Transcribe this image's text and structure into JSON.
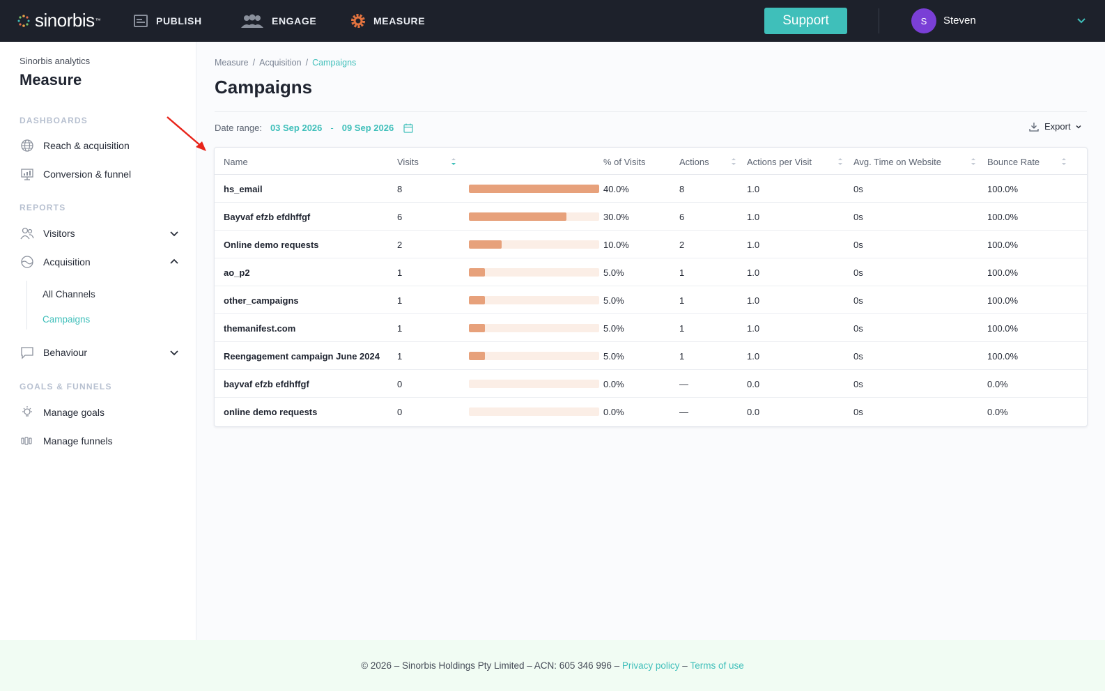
{
  "brand": {
    "name": "sinorbis",
    "tm": "™"
  },
  "topnav": {
    "items": [
      {
        "label": "PUBLISH",
        "icon": "publish-icon"
      },
      {
        "label": "ENGAGE",
        "icon": "engage-icon"
      },
      {
        "label": "MEASURE",
        "icon": "measure-gear-icon"
      }
    ],
    "support_label": "Support",
    "user": {
      "initial": "S",
      "name": "Steven"
    }
  },
  "sidebar": {
    "subtitle": "Sinorbis analytics",
    "title": "Measure",
    "sections": {
      "dashboards": "DASHBOARDS",
      "reports": "REPORTS",
      "goals": "GOALS & FUNNELS"
    },
    "dashboards": [
      {
        "label": "Reach & acquisition",
        "icon": "globe-icon"
      },
      {
        "label": "Conversion & funnel",
        "icon": "presentation-icon"
      }
    ],
    "reports": [
      {
        "label": "Visitors",
        "icon": "users-icon"
      },
      {
        "label": "Acquisition",
        "icon": "acquisition-icon"
      },
      {
        "label": "Behaviour",
        "icon": "chat-bubble-icon"
      }
    ],
    "acquisition_sub": [
      {
        "label": "All Channels"
      },
      {
        "label": "Campaigns"
      }
    ],
    "goals": [
      {
        "label": "Manage goals",
        "icon": "lightbulb-icon"
      },
      {
        "label": "Manage funnels",
        "icon": "funnel-icon"
      }
    ]
  },
  "breadcrumb": [
    "Measure",
    "Acquisition",
    "Campaigns"
  ],
  "breadcrumb_sep": "/",
  "page_title": "Campaigns",
  "date_range": {
    "label": "Date range:",
    "start": "03 Sep 2026",
    "sep": "-",
    "end": "09 Sep 2026"
  },
  "export_label": "Export",
  "table": {
    "headers": {
      "name": "Name",
      "visits": "Visits",
      "pct": "% of Visits",
      "actions": "Actions",
      "apv": "Actions per Visit",
      "avg_time": "Avg. Time on Website",
      "bounce": "Bounce Rate"
    },
    "rows": [
      {
        "name": "hs_email",
        "visits": "8",
        "share": 0.4,
        "pct": "40.0%",
        "actions": "8",
        "apv": "1.0",
        "avg_time": "0s",
        "bounce": "100.0%"
      },
      {
        "name": "Bayvaf efzb efdhffgf",
        "visits": "6",
        "share": 0.3,
        "pct": "30.0%",
        "actions": "6",
        "apv": "1.0",
        "avg_time": "0s",
        "bounce": "100.0%"
      },
      {
        "name": "Online demo requests",
        "visits": "2",
        "share": 0.1,
        "pct": "10.0%",
        "actions": "2",
        "apv": "1.0",
        "avg_time": "0s",
        "bounce": "100.0%"
      },
      {
        "name": "ao_p2",
        "visits": "1",
        "share": 0.05,
        "pct": "5.0%",
        "actions": "1",
        "apv": "1.0",
        "avg_time": "0s",
        "bounce": "100.0%"
      },
      {
        "name": "other_campaigns",
        "visits": "1",
        "share": 0.05,
        "pct": "5.0%",
        "actions": "1",
        "apv": "1.0",
        "avg_time": "0s",
        "bounce": "100.0%"
      },
      {
        "name": "themanifest.com",
        "visits": "1",
        "share": 0.05,
        "pct": "5.0%",
        "actions": "1",
        "apv": "1.0",
        "avg_time": "0s",
        "bounce": "100.0%"
      },
      {
        "name": "Reengagement campaign June 2024",
        "visits": "1",
        "share": 0.05,
        "pct": "5.0%",
        "actions": "1",
        "apv": "1.0",
        "avg_time": "0s",
        "bounce": "100.0%"
      },
      {
        "name": "bayvaf efzb efdhffgf",
        "visits": "0",
        "share": 0,
        "pct": "0.0%",
        "actions": "—",
        "apv": "0.0",
        "avg_time": "0s",
        "bounce": "0.0%"
      },
      {
        "name": "online demo requests",
        "visits": "0",
        "share": 0,
        "pct": "0.0%",
        "actions": "—",
        "apv": "0.0",
        "avg_time": "0s",
        "bounce": "0.0%"
      }
    ]
  },
  "footer": {
    "text": "© 2026 – Sinorbis Holdings Pty Limited – ACN: 605 346 996 –",
    "privacy": "Privacy policy",
    "dash": "–",
    "terms": "Terms of use"
  },
  "colors": {
    "topbar": "#1d212b",
    "accent": "#3fbfba",
    "bar_fill": "#e7a17b",
    "bar_track": "#fbeee6",
    "avatar": "#7a3fd6",
    "annotation": "#e8241a"
  }
}
